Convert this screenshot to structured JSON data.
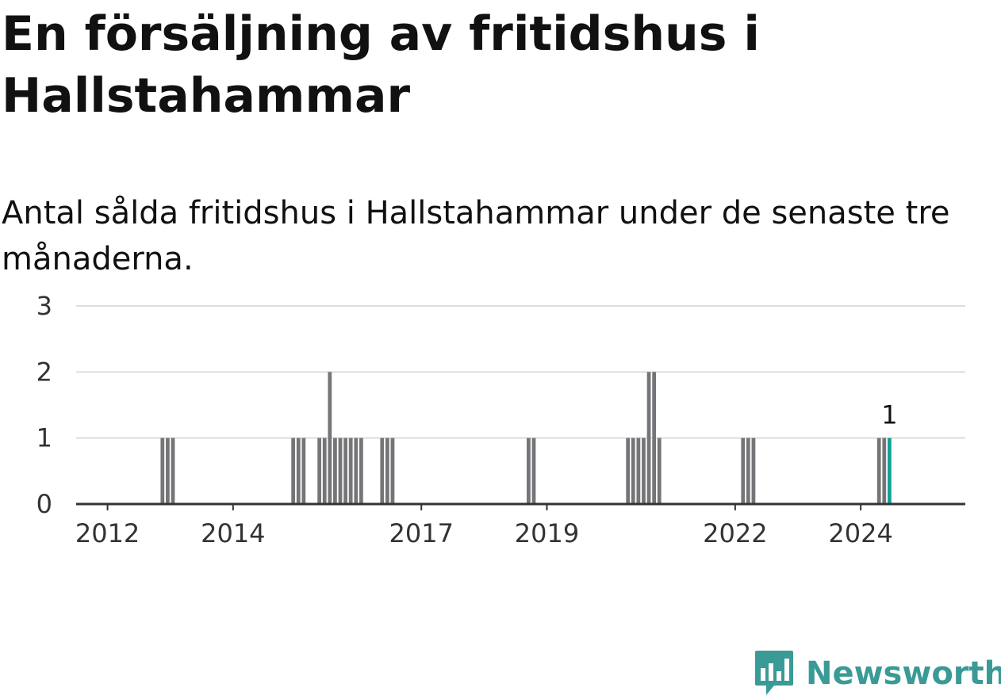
{
  "header": {
    "title": "En försäljning av fritidshus i Hallstahammar",
    "subtitle": "Antal sålda fritidshus i Hallstahammar under de senaste tre månaderna."
  },
  "brand": {
    "name": "Newsworthy",
    "icon": "newsworthy-logo-icon",
    "color": "#3a9a96"
  },
  "colors": {
    "bar": "#757579",
    "highlight": "#16a096",
    "grid": "#dddddd",
    "axis": "#333333"
  },
  "chart_data": {
    "type": "bar",
    "title": "",
    "xlabel": "",
    "ylabel": "",
    "ylim": [
      0,
      3
    ],
    "yticks": [
      0,
      1,
      2,
      3
    ],
    "grid": true,
    "legend": "none",
    "xlim": [
      "2011-07",
      "2025-09"
    ],
    "xticks": [
      "2012",
      "2014",
      "2017",
      "2019",
      "2022",
      "2024"
    ],
    "x": [
      "2012-11",
      "2012-12",
      "2013-01",
      "2014-12",
      "2015-01",
      "2015-02",
      "2015-05",
      "2015-06",
      "2015-07",
      "2015-08",
      "2015-09",
      "2015-10",
      "2015-11",
      "2015-12",
      "2016-01",
      "2016-05",
      "2016-06",
      "2016-07",
      "2018-09",
      "2018-10",
      "2020-04",
      "2020-05",
      "2020-06",
      "2020-07",
      "2020-08",
      "2020-09",
      "2020-10",
      "2022-02",
      "2022-03",
      "2022-04",
      "2024-04",
      "2024-05",
      "2024-06"
    ],
    "values": [
      1,
      1,
      1,
      1,
      1,
      1,
      1,
      1,
      2,
      1,
      1,
      1,
      1,
      1,
      1,
      1,
      1,
      1,
      1,
      1,
      1,
      1,
      1,
      1,
      2,
      2,
      1,
      1,
      1,
      1,
      1,
      1,
      1
    ],
    "highlight": {
      "x": "2024-06",
      "value": 1,
      "label": "1"
    }
  }
}
